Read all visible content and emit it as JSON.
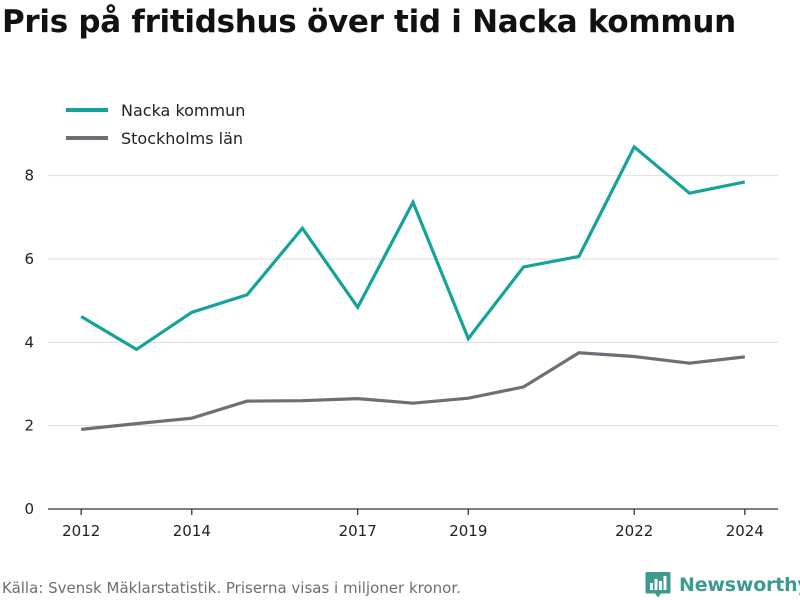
{
  "title": "Pris på fritidshus över tid i Nacka kommun",
  "source": "Källa: Svensk Mäklarstatistik. Priserna visas i miljoner kronor.",
  "brand": {
    "name": "Newsworthy",
    "icon": "bar-chart-logo-icon",
    "color": "#3d9a8f"
  },
  "chart_data": {
    "type": "line",
    "x": [
      2012,
      2013,
      2014,
      2015,
      2016,
      2017,
      2018,
      2019,
      2020,
      2021,
      2022,
      2023,
      2024
    ],
    "series": [
      {
        "name": "Nacka kommun",
        "color": "#14a39a",
        "values": [
          4.62,
          3.83,
          4.72,
          5.14,
          6.74,
          4.84,
          7.36,
          4.09,
          5.81,
          6.06,
          8.69,
          7.58,
          7.85
        ]
      },
      {
        "name": "Stockholms län",
        "color": "#6d6e76",
        "values": [
          1.91,
          2.05,
          2.18,
          2.59,
          2.6,
          2.65,
          2.54,
          2.66,
          2.93,
          3.75,
          3.66,
          3.5,
          3.65
        ]
      }
    ],
    "xticks": [
      2012,
      2014,
      2017,
      2019,
      2022,
      2024
    ],
    "yticks": [
      0,
      2,
      4,
      6,
      8
    ],
    "ylim": [
      0,
      9
    ],
    "xlim": [
      2011.4,
      2024.6
    ],
    "grid": true,
    "legend": "top-left",
    "xlabel": "",
    "ylabel": ""
  }
}
